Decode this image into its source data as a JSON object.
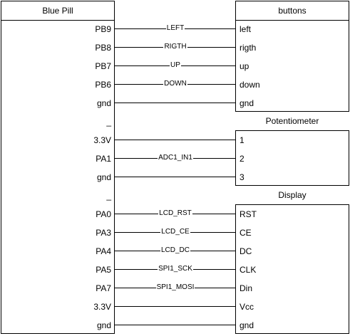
{
  "blue_pill": {
    "title": "Blue Pill",
    "pins": [
      "PB9",
      "PB8",
      "PB7",
      "PB6",
      "gnd",
      "_",
      "3.3V",
      "PA1",
      "gnd",
      "_",
      "PA0",
      "PA3",
      "PA4",
      "PA5",
      "PA7",
      "3.3V",
      "gnd"
    ]
  },
  "buttons": {
    "title": "buttons",
    "pins": [
      "left",
      "rigth",
      "up",
      "down",
      "gnd"
    ]
  },
  "potentiometer": {
    "title": "Potentiometer",
    "pins": [
      "1",
      "2",
      "3"
    ]
  },
  "display": {
    "title": "Display",
    "pins": [
      "RST",
      "CE",
      "DC",
      "CLK",
      "Din",
      "Vcc",
      "gnd"
    ]
  },
  "wires": [
    {
      "label": "LEFT"
    },
    {
      "label": "RIGTH"
    },
    {
      "label": "UP"
    },
    {
      "label": "DOWN"
    },
    {
      "label": ""
    },
    {
      "label": ""
    },
    {
      "label": "ADC1_IN1"
    },
    {
      "label": ""
    },
    {
      "label": "LCD_RST"
    },
    {
      "label": "LCD_CE"
    },
    {
      "label": "LCD_DC"
    },
    {
      "label": "SPI1_SCK"
    },
    {
      "label": "SPI1_MOSI"
    },
    {
      "label": ""
    },
    {
      "label": ""
    }
  ]
}
